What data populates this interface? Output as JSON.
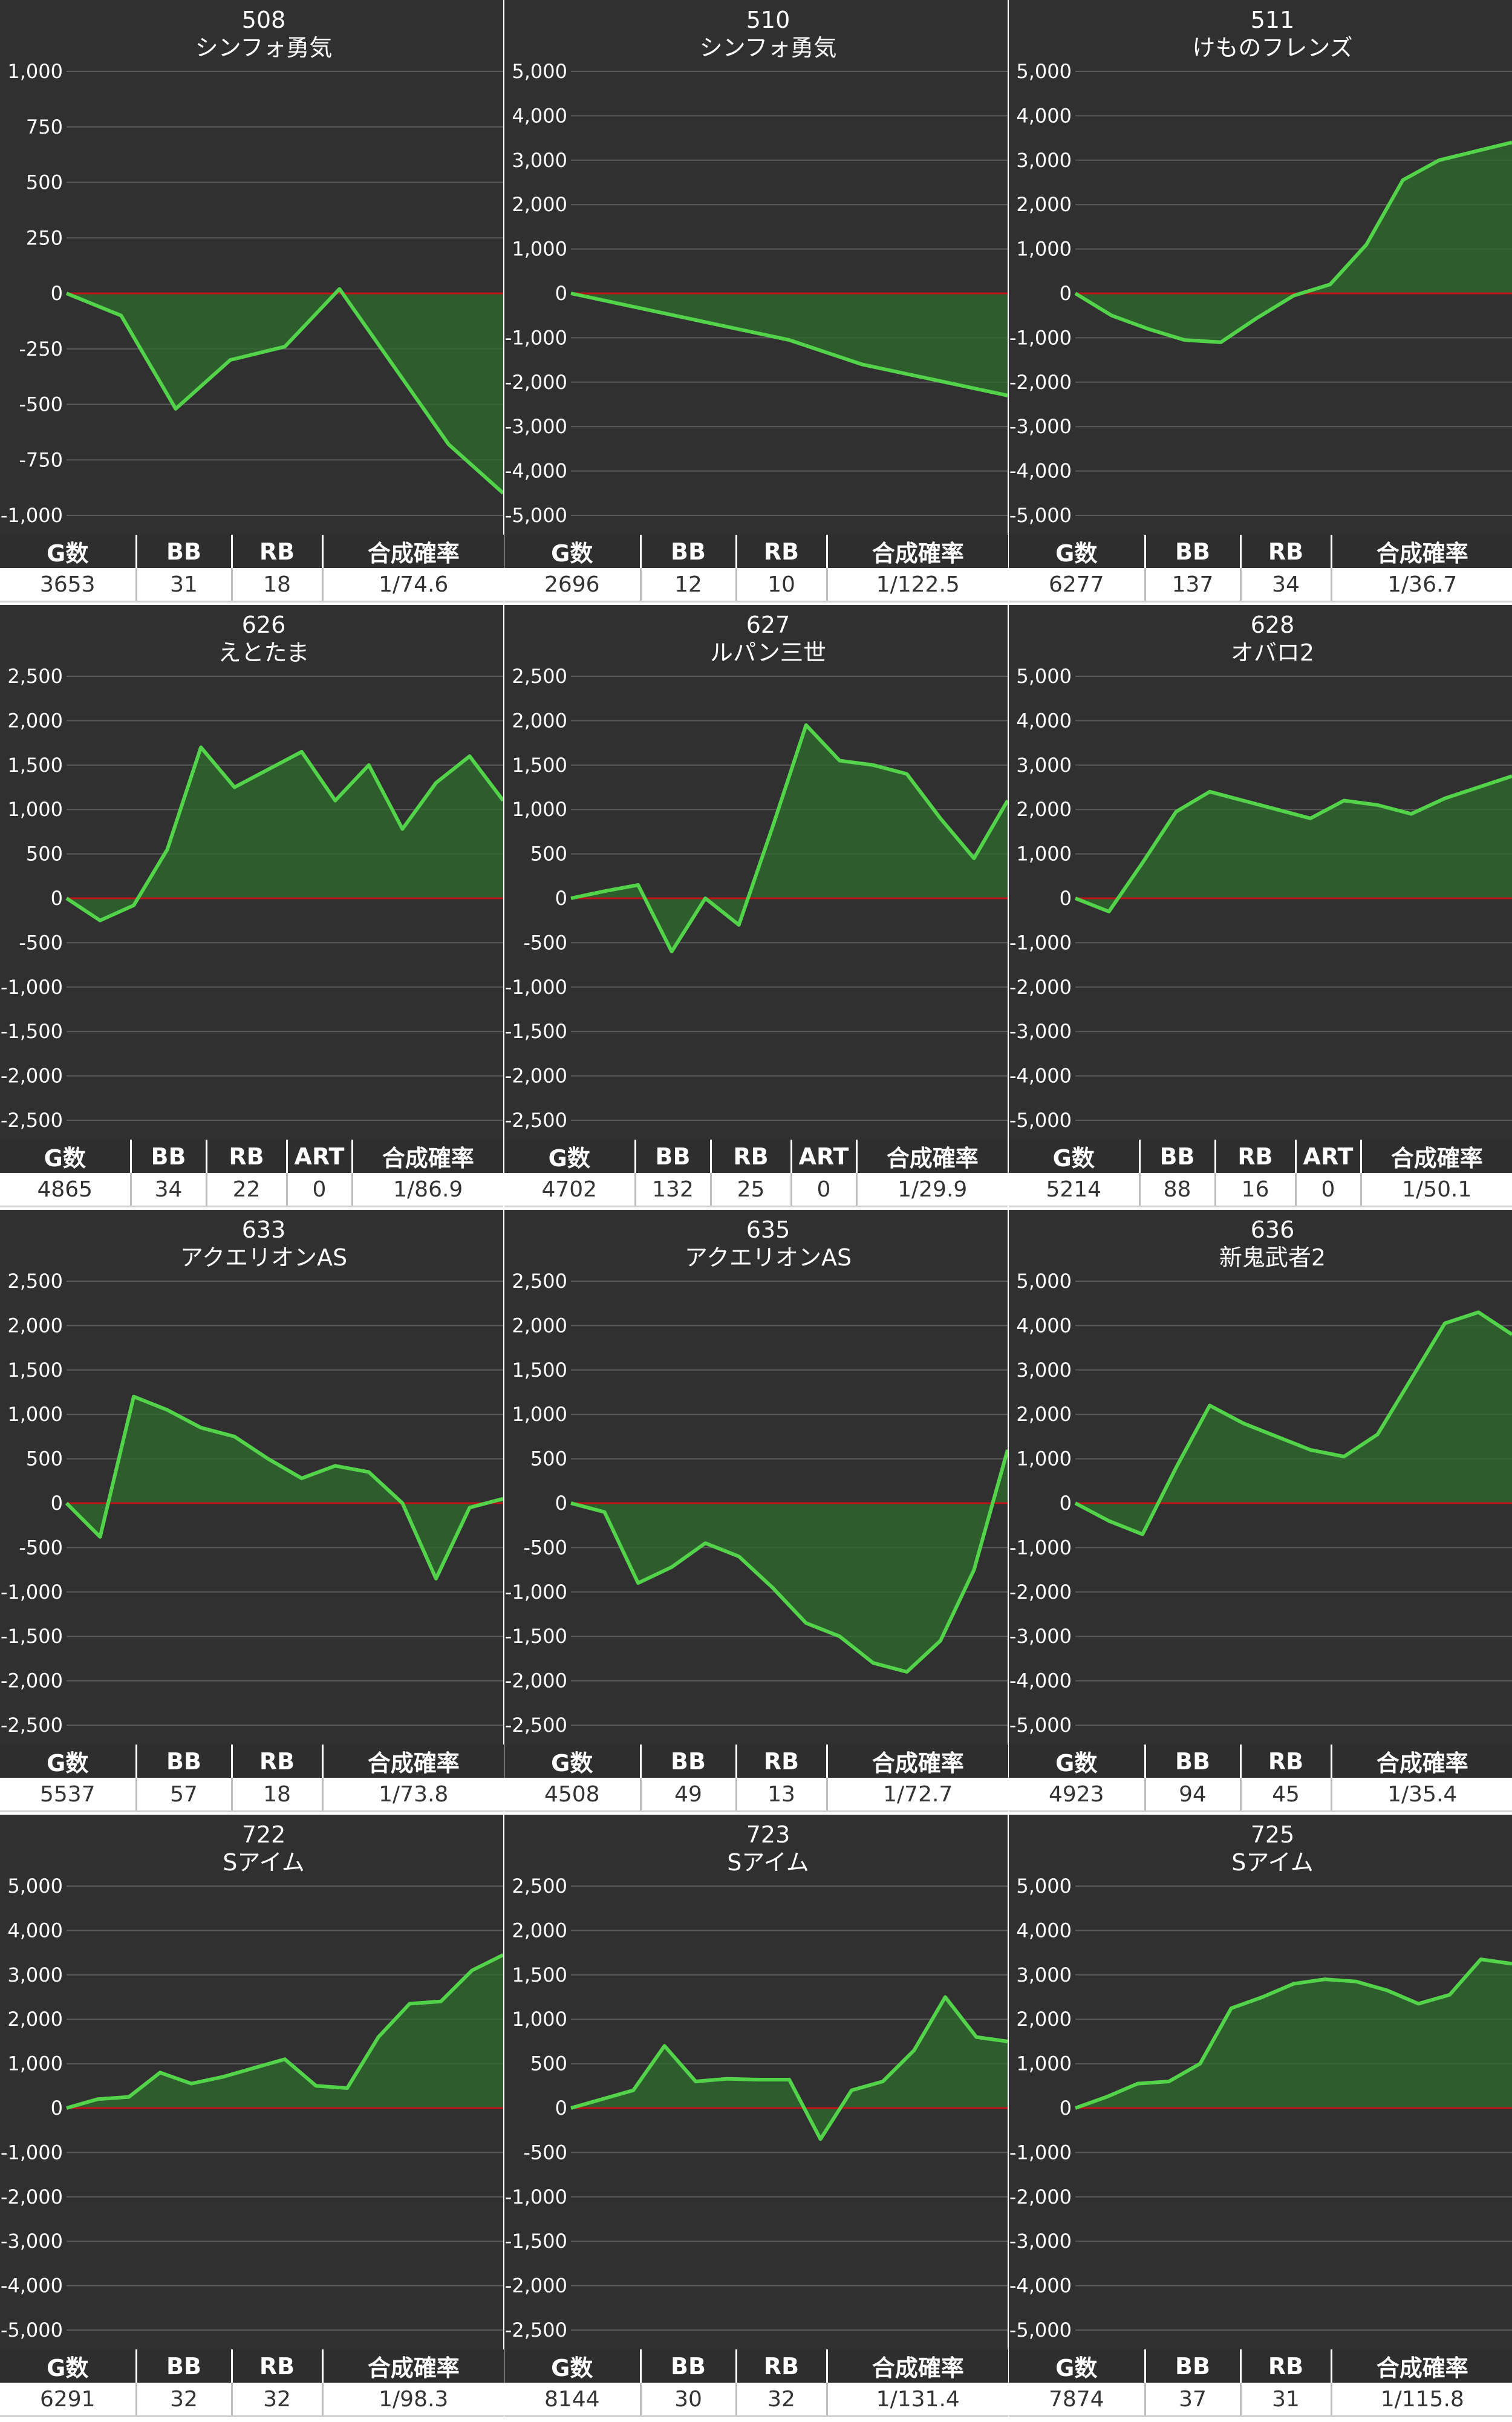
{
  "colors": {
    "chart_bg": "#303030",
    "grid": "#5a5a5a",
    "zero_line": "#c0121a",
    "line": "#52d34a",
    "fill": "#2c6b2c",
    "header_bg": "#2e2e2e"
  },
  "chart_data": [
    {
      "type": "area",
      "machine": "508",
      "title": "シンフォ勇気",
      "ylim": [
        -1000,
        1000
      ],
      "yticks": [
        "1,000",
        "750",
        "500",
        "250",
        "0",
        "-250",
        "-500",
        "-750",
        "-1,000"
      ],
      "values": [
        0,
        -100,
        -520,
        -300,
        -240,
        20,
        -330,
        -680,
        -900
      ],
      "stats_headers": [
        "G数",
        "BB",
        "RB",
        "合成確率"
      ],
      "stats": [
        "3653",
        "31",
        "18",
        "1/74.6"
      ]
    },
    {
      "type": "area",
      "machine": "510",
      "title": "シンフォ勇気",
      "ylim": [
        -5000,
        5000
      ],
      "yticks": [
        "5,000",
        "4,000",
        "3,000",
        "2,000",
        "1,000",
        "0",
        "-1,000",
        "-2,000",
        "-3,000",
        "-4,000",
        "-5,000"
      ],
      "values": [
        0,
        -350,
        -700,
        -1050,
        -1600,
        -1950,
        -2300
      ],
      "stats_headers": [
        "G数",
        "BB",
        "RB",
        "合成確率"
      ],
      "stats": [
        "2696",
        "12",
        "10",
        "1/122.5"
      ]
    },
    {
      "type": "area",
      "machine": "511",
      "title": "けものフレンズ",
      "ylim": [
        -5000,
        5000
      ],
      "yticks": [
        "5,000",
        "4,000",
        "3,000",
        "2,000",
        "1,000",
        "0",
        "-1,000",
        "-2,000",
        "-3,000",
        "-4,000",
        "-5,000"
      ],
      "values": [
        0,
        -500,
        -800,
        -1050,
        -1100,
        -550,
        -50,
        200,
        1100,
        2550,
        3000,
        3200,
        3400
      ],
      "stats_headers": [
        "G数",
        "BB",
        "RB",
        "合成確率"
      ],
      "stats": [
        "6277",
        "137",
        "34",
        "1/36.7"
      ]
    },
    {
      "type": "area",
      "machine": "626",
      "title": "えとたま",
      "ylim": [
        -2500,
        2500
      ],
      "yticks": [
        "2,500",
        "2,000",
        "1,500",
        "1,000",
        "500",
        "0",
        "-500",
        "-1,000",
        "-1,500",
        "-2,000",
        "-2,500"
      ],
      "values": [
        0,
        -250,
        -80,
        550,
        1700,
        1250,
        1450,
        1650,
        1100,
        1500,
        780,
        1300,
        1600,
        1100
      ],
      "stats_headers": [
        "G数",
        "BB",
        "RB",
        "ART",
        "合成確率"
      ],
      "stats": [
        "4865",
        "34",
        "22",
        "0",
        "1/86.9"
      ]
    },
    {
      "type": "area",
      "machine": "627",
      "title": "ルパン三世",
      "ylim": [
        -2500,
        2500
      ],
      "yticks": [
        "2,500",
        "2,000",
        "1,500",
        "1,000",
        "500",
        "0",
        "-500",
        "-1,000",
        "-1,500",
        "-2,000",
        "-2,500"
      ],
      "values": [
        0,
        80,
        150,
        -600,
        0,
        -300,
        800,
        1950,
        1550,
        1500,
        1400,
        900,
        450,
        1100
      ],
      "stats_headers": [
        "G数",
        "BB",
        "RB",
        "ART",
        "合成確率"
      ],
      "stats": [
        "4702",
        "132",
        "25",
        "0",
        "1/29.9"
      ]
    },
    {
      "type": "area",
      "machine": "628",
      "title": "オバロ2",
      "ylim": [
        -5000,
        5000
      ],
      "yticks": [
        "5,000",
        "4,000",
        "3,000",
        "2,000",
        "1,000",
        "0",
        "-1,000",
        "-2,000",
        "-3,000",
        "-4,000",
        "-5,000"
      ],
      "values": [
        0,
        -300,
        800,
        1950,
        2400,
        2200,
        2000,
        1800,
        2200,
        2100,
        1900,
        2250,
        2500,
        2750
      ],
      "stats_headers": [
        "G数",
        "BB",
        "RB",
        "ART",
        "合成確率"
      ],
      "stats": [
        "5214",
        "88",
        "16",
        "0",
        "1/50.1"
      ]
    },
    {
      "type": "area",
      "machine": "633",
      "title": "アクエリオンAS",
      "ylim": [
        -2500,
        2500
      ],
      "yticks": [
        "2,500",
        "2,000",
        "1,500",
        "1,000",
        "500",
        "0",
        "-500",
        "-1,000",
        "-1,500",
        "-2,000",
        "-2,500"
      ],
      "values": [
        0,
        -380,
        1200,
        1050,
        850,
        750,
        500,
        280,
        420,
        350,
        0,
        -850,
        -50,
        50
      ],
      "stats_headers": [
        "G数",
        "BB",
        "RB",
        "合成確率"
      ],
      "stats": [
        "5537",
        "57",
        "18",
        "1/73.8"
      ]
    },
    {
      "type": "area",
      "machine": "635",
      "title": "アクエリオンAS",
      "ylim": [
        -2500,
        2500
      ],
      "yticks": [
        "2,500",
        "2,000",
        "1,500",
        "1,000",
        "500",
        "0",
        "-500",
        "-1,000",
        "-1,500",
        "-2,000",
        "-2,500"
      ],
      "values": [
        0,
        -100,
        -900,
        -720,
        -450,
        -600,
        -950,
        -1350,
        -1500,
        -1800,
        -1900,
        -1550,
        -750,
        600
      ],
      "stats_headers": [
        "G数",
        "BB",
        "RB",
        "合成確率"
      ],
      "stats": [
        "4508",
        "49",
        "13",
        "1/72.7"
      ]
    },
    {
      "type": "area",
      "machine": "636",
      "title": "新鬼武者2",
      "ylim": [
        -5000,
        5000
      ],
      "yticks": [
        "5,000",
        "4,000",
        "3,000",
        "2,000",
        "1,000",
        "0",
        "-1,000",
        "-2,000",
        "-3,000",
        "-4,000",
        "-5,000"
      ],
      "values": [
        0,
        -400,
        -700,
        800,
        2200,
        1800,
        1500,
        1200,
        1050,
        1550,
        2800,
        4050,
        4300,
        3800
      ],
      "stats_headers": [
        "G数",
        "BB",
        "RB",
        "合成確率"
      ],
      "stats": [
        "4923",
        "94",
        "45",
        "1/35.4"
      ]
    },
    {
      "type": "area",
      "machine": "722",
      "title": "Sアイム",
      "ylim": [
        -5000,
        5000
      ],
      "yticks": [
        "5,000",
        "4,000",
        "3,000",
        "2,000",
        "1,000",
        "0",
        "-1,000",
        "-2,000",
        "-3,000",
        "-4,000",
        "-5,000"
      ],
      "values": [
        0,
        200,
        250,
        800,
        550,
        700,
        900,
        1100,
        500,
        450,
        1600,
        2350,
        2400,
        3100,
        3450
      ],
      "stats_headers": [
        "G数",
        "BB",
        "RB",
        "合成確率"
      ],
      "stats": [
        "6291",
        "32",
        "32",
        "1/98.3"
      ]
    },
    {
      "type": "area",
      "machine": "723",
      "title": "Sアイム",
      "ylim": [
        -2500,
        2500
      ],
      "yticks": [
        "2,500",
        "2,000",
        "1,500",
        "1,000",
        "500",
        "0",
        "-500",
        "-1,000",
        "-1,500",
        "-2,000",
        "-2,500"
      ],
      "values": [
        0,
        100,
        200,
        700,
        300,
        330,
        320,
        320,
        -350,
        200,
        300,
        650,
        1250,
        800,
        750
      ],
      "stats_headers": [
        "G数",
        "BB",
        "RB",
        "合成確率"
      ],
      "stats": [
        "8144",
        "30",
        "32",
        "1/131.4"
      ]
    },
    {
      "type": "area",
      "machine": "725",
      "title": "Sアイム",
      "ylim": [
        -5000,
        5000
      ],
      "yticks": [
        "5,000",
        "4,000",
        "3,000",
        "2,000",
        "1,000",
        "0",
        "-1,000",
        "-2,000",
        "-3,000",
        "-4,000",
        "-5,000"
      ],
      "values": [
        0,
        250,
        550,
        600,
        1000,
        2250,
        2500,
        2800,
        2900,
        2850,
        2650,
        2350,
        2550,
        3350,
        3250
      ],
      "stats_headers": [
        "G数",
        "BB",
        "RB",
        "合成確率"
      ],
      "stats": [
        "7874",
        "37",
        "31",
        "1/115.8"
      ]
    }
  ]
}
